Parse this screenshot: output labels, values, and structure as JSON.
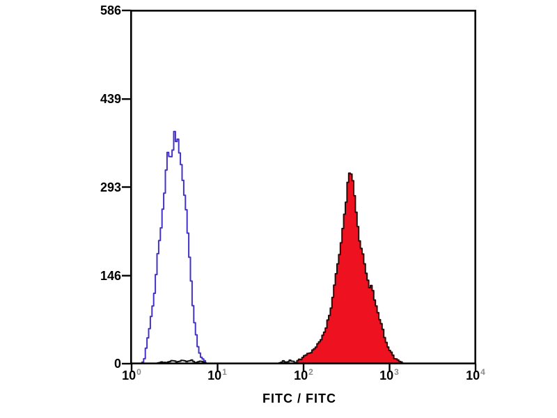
{
  "axes": {
    "y": {
      "tick_labels": [
        "586",
        "439",
        "293",
        "146",
        "0"
      ]
    },
    "x": {
      "label": "FITC / FITC",
      "tick_base": "10",
      "tick_exponents": [
        "0",
        "1",
        "2",
        "3",
        "4"
      ]
    }
  },
  "colors": {
    "axis": "#000000",
    "open_histogram_line": "#4331c8",
    "filled_histogram_fill": "#ee1220",
    "filled_histogram_line": "#2a0808",
    "baseline_noise": "#111111",
    "superscript_gray": "#8c8c8c",
    "background": "#ffffff"
  },
  "chart_data": {
    "type": "area",
    "subtype": "flow-cytometry-histogram-overlay",
    "title": "",
    "xlabel": "FITC / FITC",
    "ylabel": "",
    "x_scale": "log10",
    "xlim": [
      1,
      10000
    ],
    "ylim": [
      0,
      586
    ],
    "y_ticks": [
      0,
      146,
      293,
      439,
      586
    ],
    "x_ticks": [
      1,
      10,
      100,
      1000,
      10000
    ],
    "grid": false,
    "legend": false,
    "series": [
      {
        "name": "open-control-histogram",
        "style": "open-step-outline",
        "line_color": "#4331c8",
        "fill": "none",
        "peak_x": 3.2,
        "peak_count": 387,
        "points": [
          [
            1.32,
            0
          ],
          [
            1.4,
            6
          ],
          [
            1.53,
            39
          ],
          [
            1.62,
            60
          ],
          [
            1.78,
            98
          ],
          [
            1.91,
            141
          ],
          [
            2.04,
            187
          ],
          [
            2.24,
            230
          ],
          [
            2.34,
            272
          ],
          [
            2.51,
            311
          ],
          [
            2.57,
            334
          ],
          [
            2.72,
            353
          ],
          [
            2.82,
            334
          ],
          [
            2.95,
            357
          ],
          [
            3.09,
            361
          ],
          [
            3.14,
            384
          ],
          [
            3.16,
            387
          ],
          [
            3.2,
            369
          ],
          [
            3.28,
            357
          ],
          [
            3.39,
            370
          ],
          [
            3.55,
            369
          ],
          [
            3.63,
            353
          ],
          [
            3.8,
            329
          ],
          [
            3.98,
            299
          ],
          [
            4.27,
            260
          ],
          [
            4.52,
            218
          ],
          [
            4.79,
            168
          ],
          [
            5.01,
            121
          ],
          [
            5.25,
            83
          ],
          [
            5.62,
            49
          ],
          [
            5.96,
            25
          ],
          [
            6.46,
            10
          ],
          [
            7.08,
            5
          ],
          [
            7.4,
            0
          ]
        ]
      },
      {
        "name": "filled-stained-histogram",
        "style": "filled-step",
        "line_color": "#2a0808",
        "fill": "#ee1220",
        "peak_x": 347,
        "peak_count": 334,
        "points": [
          [
            80,
            0
          ],
          [
            86,
            6
          ],
          [
            107,
            14
          ],
          [
            132,
            23
          ],
          [
            158,
            39
          ],
          [
            182,
            58
          ],
          [
            200,
            80
          ],
          [
            219,
            110
          ],
          [
            234,
            139
          ],
          [
            251,
            164
          ],
          [
            269,
            199
          ],
          [
            288,
            222
          ],
          [
            302,
            249
          ],
          [
            316,
            272
          ],
          [
            324,
            299
          ],
          [
            339,
            314
          ],
          [
            347,
            334
          ],
          [
            363,
            306
          ],
          [
            380,
            291
          ],
          [
            398,
            272
          ],
          [
            427,
            230
          ],
          [
            457,
            195
          ],
          [
            490,
            179
          ],
          [
            513,
            168
          ],
          [
            550,
            141
          ],
          [
            589,
            126
          ],
          [
            603,
            133
          ],
          [
            646,
            118
          ],
          [
            661,
            110
          ],
          [
            724,
            87
          ],
          [
            794,
            68
          ],
          [
            871,
            45
          ],
          [
            955,
            29
          ],
          [
            1072,
            14
          ],
          [
            1259,
            5
          ],
          [
            1500,
            0
          ]
        ]
      },
      {
        "name": "baseline-noise-left",
        "style": "open-step-outline",
        "line_color": "#111111",
        "fill": "none",
        "points": [
          [
            2.0,
            0
          ],
          [
            2.2,
            3
          ],
          [
            2.6,
            2
          ],
          [
            3.0,
            5
          ],
          [
            3.4,
            3
          ],
          [
            3.9,
            6
          ],
          [
            4.4,
            3
          ],
          [
            5.0,
            6
          ],
          [
            5.5,
            2
          ],
          [
            6.3,
            4
          ],
          [
            7.0,
            2
          ],
          [
            7.6,
            0
          ]
        ]
      },
      {
        "name": "baseline-noise-prered",
        "style": "open-step-outline",
        "line_color": "#111111",
        "fill": "none",
        "points": [
          [
            52,
            0
          ],
          [
            58,
            4
          ],
          [
            64,
            2
          ],
          [
            70,
            6
          ],
          [
            78,
            3
          ],
          [
            84,
            0
          ]
        ]
      }
    ]
  }
}
